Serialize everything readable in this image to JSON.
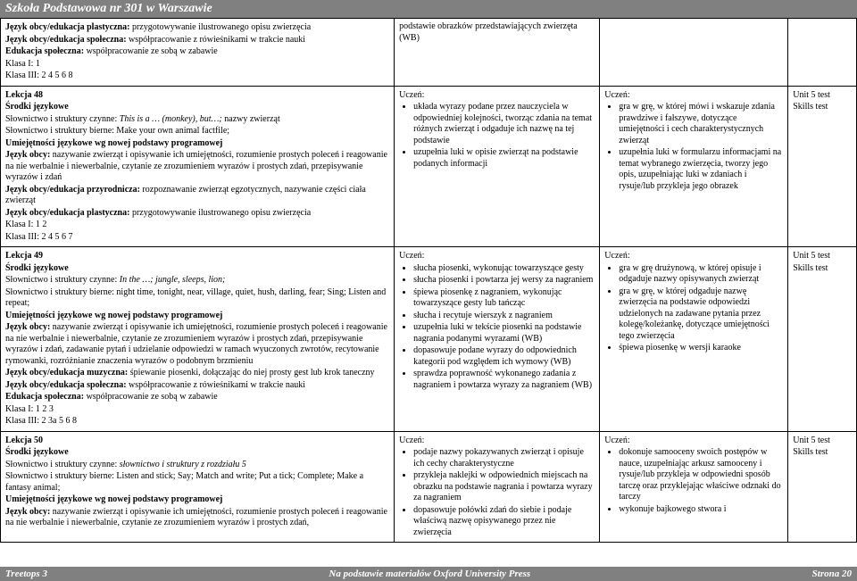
{
  "header": "Szkoła Podstawowa nr 301 w Warszawie",
  "footer": {
    "left": "Treetops 3",
    "center": "Na podstawie materiałów Oxford University Press",
    "right": "Strona 20"
  },
  "topRow": {
    "col1": [
      {
        "bold": "Język obcy/edukacja plastyczna:",
        "rest": " przygotowywanie ilustrowanego opisu zwierzęcia"
      },
      {
        "bold": "Język obcy/edukacja społeczna:",
        "rest": " współpracowanie z rówieśnikami w trakcie nauki"
      },
      {
        "bold": "Edukacja społeczna:",
        "rest": " współpracowanie ze sobą w zabawie"
      },
      {
        "plain": "Klasa I: 1"
      },
      {
        "plain": "Klasa III: 2 4 5 6 8"
      }
    ],
    "col2": "podstawie obrazków przedstawiających zwierzęta (WB)"
  },
  "lekcja48": {
    "title": "Lekcja 48",
    "srodki": "Środki językowe",
    "czynne_label": "Słownictwo i struktury czynne: ",
    "czynne_italic": "This is a … (monkey), but…; ",
    "czynne_post": "nazwy zwierząt",
    "bierne": "Słownictwo i struktury bierne: Make your own animal factfile;",
    "umie_bold": "Umiejętności językowe wg nowej podstawy programowej",
    "jobcy_label": "Język obcy:",
    "jobcy_rest": " nazywanie zwierząt i opisywanie ich umiejętności, rozumienie prostych poleceń i reagowanie na nie werbalnie i niewerbalnie, czytanie ze zrozumieniem wyrazów i prostych zdań, przepisywanie wyrazów i zdań",
    "przyr_label": "Język obcy/edukacja przyrodnicza:",
    "przyr_rest": " rozpoznawanie zwierząt egzotycznych, nazywanie części ciała zwierząt",
    "plast_label": "Język obcy/edukacja plastyczna:",
    "plast_rest": " przygotowywanie ilustrowanego opisu zwierzęcia",
    "klasa1": "Klasa I: 1 2",
    "klasa3": "Klasa III: 2 4 5 6 7",
    "uczen": "Uczeń:",
    "col2": [
      "układa wyrazy podane przez nauczyciela w odpowiedniej kolejności, tworząc zdania na temat różnych zwierząt i odgaduje ich nazwę na tej podstawie",
      "uzupełnia luki w opisie zwierząt na podstawie podanych informacji"
    ],
    "col3": [
      "gra w grę, w której mówi i wskazuje zdania prawdziwe i fałszywe, dotyczące umiejętności i cech charakterystycznych zwierząt",
      "uzupełnia luki w formularzu informacjami na temat wybranego zwierzęcia, tworzy jego opis, uzupełniając luki w zdaniach i rysuje/lub przykleja jego obrazek"
    ],
    "tests": [
      "Unit 5 test",
      "Skills test"
    ]
  },
  "lekcja49": {
    "title": "Lekcja 49",
    "srodki": "Środki językowe",
    "czynne_label": "Słownictwo i struktury czynne: ",
    "czynne_italic": "In the …; jungle, sleeps, lion;",
    "bierne": "Słownictwo i struktury bierne: night time, tonight, near, village, quiet, hush, darling, fear; Sing; Listen and repeat;",
    "umie_bold": "Umiejętności językowe wg nowej podstawy programowej",
    "jobcy_label": "Język obcy:",
    "jobcy_rest": " nazywanie zwierząt i opisywanie ich umiejętności, rozumienie prostych poleceń i reagowanie na nie werbalnie i niewerbalnie, czytanie ze zrozumieniem wyrazów i prostych zdań, przepisywanie wyrazów i zdań, zadawanie pytań i udzielanie odpowiedzi w ramach wyuczonych zwrotów, recytowanie rymowanki, rozróżnianie znaczenia wyrazów o podobnym brzmieniu",
    "muz_label": "Język obcy/edukacja muzyczna:",
    "muz_rest": " śpiewanie piosenki, dołączając do niej prosty gest lub krok taneczny",
    "spol_label": "Język obcy/edukacja społeczna:",
    "spol_rest": " współpracowanie z rówieśnikami w trakcie nauki",
    "edu_label": "Edukacja społeczna:",
    "edu_rest": " współpracowanie ze sobą w zabawie",
    "klasa1": "Klasa I: 1 2 3",
    "klasa3": "Klasa III: 2 3a 5 6 8",
    "uczen": "Uczeń:",
    "col2": [
      "słucha piosenki, wykonując towarzyszące gesty",
      "słucha piosenki i powtarza jej wersy za nagraniem",
      "śpiewa piosenkę z nagraniem, wykonując towarzyszące gesty lub tańcząc",
      "słucha i recytuje wierszyk z nagraniem",
      "uzupełnia luki w tekście piosenki na podstawie nagrania podanymi wyrazami (WB)",
      "dopasowuje podane wyrazy do odpowiednich kategorii pod względem ich wymowy (WB)",
      "sprawdza poprawność wykonanego zadania z nagraniem i powtarza wyrazy za nagraniem (WB)"
    ],
    "col3": [
      "gra w grę drużynową, w której opisuje i odgaduje nazwy opisywanych zwierząt",
      "gra w grę, w której odgaduje nazwę zwierzęcia na podstawie odpowiedzi udzielonych na zadawane pytania przez kolegę/koleżankę, dotyczące umiejętności tego zwierzęcia",
      "śpiewa piosenkę w wersji karaoke"
    ],
    "tests": [
      "Unit 5 test",
      "Skills test"
    ]
  },
  "lekcja50": {
    "title": "Lekcja 50",
    "srodki": "Środki językowe",
    "czynne_label": "Słownictwo i struktury czynne: ",
    "czynne_italic": "słownictwo i struktury z rozdziału 5",
    "bierne": "Słownictwo i struktury bierne: Listen and stick; Say; Match and write; Put a tick; Complete; Make a fantasy animal;",
    "umie_bold": "Umiejętności językowe wg nowej podstawy programowej",
    "jobcy_label": "Język obcy:",
    "jobcy_rest": " nazywanie zwierząt i opisywanie ich umiejętności, rozumienie prostych poleceń i reagowanie na nie werbalnie i niewerbalnie, czytanie ze zrozumieniem wyrazów i prostych zdań,",
    "uczen": "Uczeń:",
    "col2": [
      "podaje nazwy pokazywanych zwierząt i opisuje ich cechy charakterystyczne",
      "przykleja naklejki w odpowiednich miejscach na obrazku na podstawie nagrania i powtarza wyrazy za nagraniem",
      "dopasowuje połówki zdań do siebie i podaje właściwą nazwę opisywanego przez nie zwierzęcia"
    ],
    "col3": [
      "dokonuje samooceny swoich postępów w nauce, uzupełniając arkusz samooceny i rysuje/lub przykleja w odpowiedni sposób tarczę oraz przyklejając właściwe odznaki do tarczy",
      "wykonuje bajkowego stwora i"
    ],
    "tests": [
      "Unit 5 test",
      "Skills test"
    ]
  }
}
